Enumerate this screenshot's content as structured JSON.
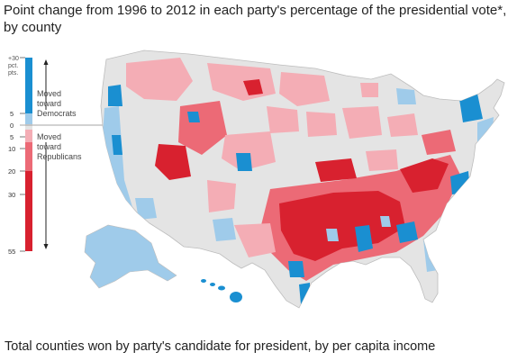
{
  "title": "Point change from 1996 to 2012 in each party's percentage of the presidential vote*, by county",
  "footer": "Total counties won by party's candidate for president, by per capita income",
  "legend": {
    "unit_line1": "pct.",
    "unit_line2": "pts.",
    "dem_ticks": [
      "+30",
      "5"
    ],
    "zero_tick": "0",
    "rep_ticks": [
      "5",
      "10",
      "20",
      "30",
      "55"
    ],
    "dem_label": [
      "Moved",
      "toward",
      "Democrats"
    ],
    "rep_label": [
      "Moved",
      "toward",
      "Republicans"
    ],
    "colors": {
      "dem_strong": "#1a8fd1",
      "dem_light": "#9fcbea",
      "neutral": "#e4e4e4",
      "rep_light": "#f4adb5",
      "rep_mid": "#ec6a76",
      "rep_strong": "#d8212f"
    }
  },
  "map": {
    "region": "United States counties",
    "insets": [
      "Alaska",
      "Hawaii"
    ]
  }
}
